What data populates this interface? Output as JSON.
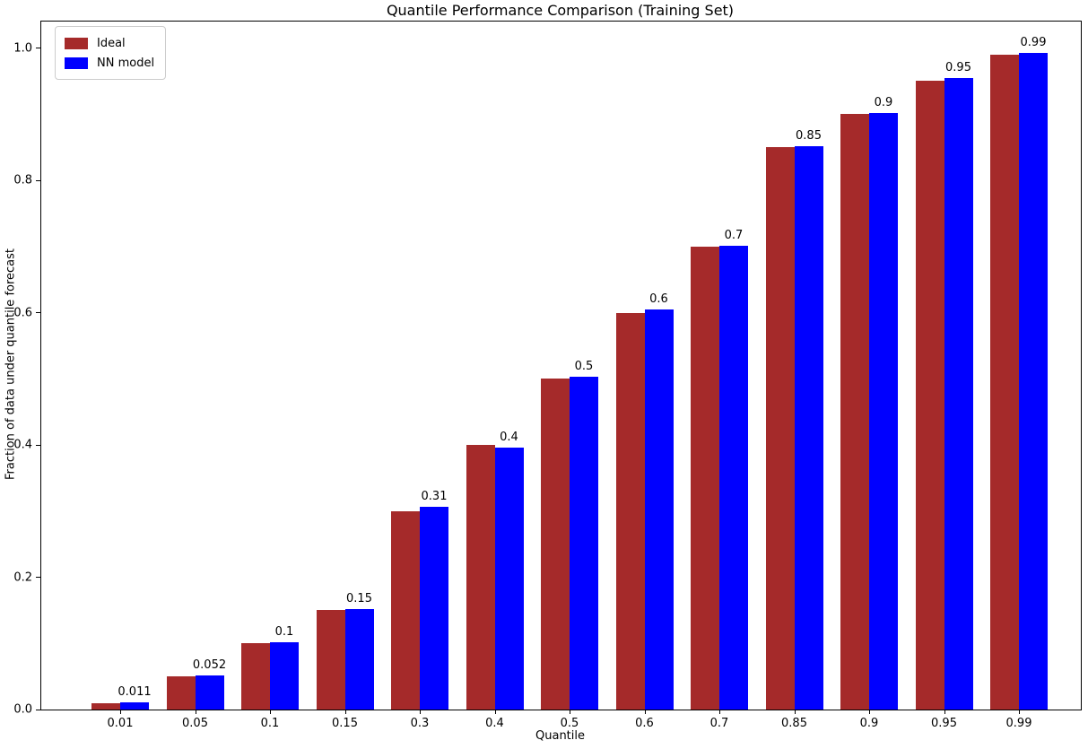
{
  "chart_data": {
    "type": "bar",
    "title": "Quantile Performance Comparison (Training Set)",
    "xlabel": "Quantile",
    "ylabel": "Fraction of data under quantile forecast",
    "categories": [
      "0.01",
      "0.05",
      "0.1",
      "0.15",
      "0.3",
      "0.4",
      "0.5",
      "0.6",
      "0.7",
      "0.85",
      "0.9",
      "0.95",
      "0.99"
    ],
    "series": [
      {
        "name": "Ideal",
        "color": "#A52A2A",
        "values": [
          0.01,
          0.05,
          0.1,
          0.15,
          0.3,
          0.4,
          0.5,
          0.6,
          0.7,
          0.85,
          0.9,
          0.95,
          0.99
        ]
      },
      {
        "name": "NN model",
        "color": "#0000FF",
        "values": [
          0.011,
          0.052,
          0.102,
          0.152,
          0.306,
          0.396,
          0.503,
          0.605,
          0.701,
          0.851,
          0.902,
          0.955,
          0.993
        ]
      }
    ],
    "bar_labels": [
      "0.011",
      "0.052",
      "0.1",
      "0.15",
      "0.31",
      "0.4",
      "0.5",
      "0.6",
      "0.7",
      "0.85",
      "0.9",
      "0.95",
      "0.99"
    ],
    "ylim": [
      0,
      1.04
    ],
    "yticks": [
      0.0,
      0.2,
      0.4,
      0.6,
      0.8,
      1.0
    ],
    "ytick_labels": [
      "0.0",
      "0.2",
      "0.4",
      "0.6",
      "0.8",
      "1.0"
    ],
    "grid": false,
    "legend_position": "upper left",
    "text_color": "#000000",
    "spine_color": "#000000"
  }
}
